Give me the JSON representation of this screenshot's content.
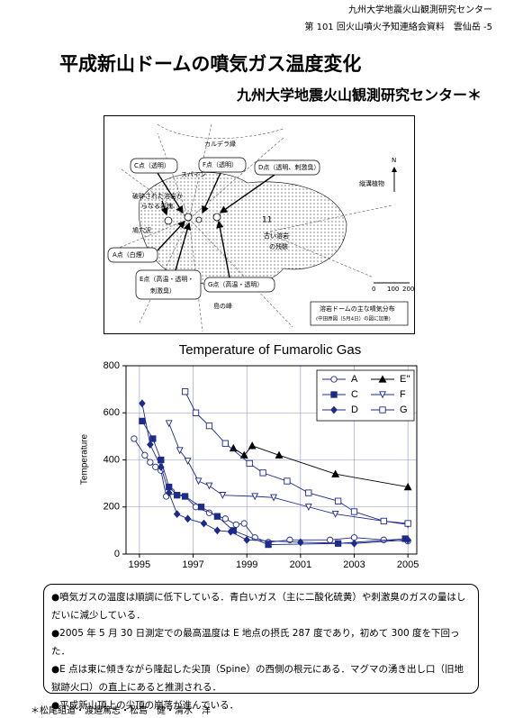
{
  "header": {
    "org": "九州大学地震火山観測研究センター",
    "meeting": "第 101 回火山噴火予知連絡会資料　雲仙岳 -5"
  },
  "title": "平成新山ドームの噴気ガス温度変化",
  "subtitle": "九州大学地震火山観測研究センター＊",
  "map": {
    "caldera": "カルデラ縁",
    "c": "C点（透明）",
    "f": "F点（透明）",
    "d": "D点（透明、刺激臭）",
    "spine": "スパイン",
    "rubble": [
      "破砕された溶岩か",
      "らなる岩塊"
    ],
    "valley": "鳩穴沢",
    "a": "A点（白煙）",
    "e": [
      "E点（高温・透明・",
      "刺激臭）"
    ],
    "g": "G点（高温・透明）",
    "old": [
      "古い溶岩",
      "の残骸"
    ],
    "lobe": "11",
    "peak": "島の峰",
    "north": "N",
    "veg": "縦溝植物",
    "scale": [
      "0",
      "100",
      "200m"
    ],
    "legend": [
      "溶岩ドームの主な噴気分布",
      "(中田原図（5月4日）の図に加筆)"
    ]
  },
  "chart_data": {
    "type": "line",
    "title": "Temperature of Fumarolic Gas",
    "y_label": "Temperature",
    "xlim": [
      1994.5,
      2005.33
    ],
    "xticks": [
      1995,
      1997,
      1999,
      2001,
      2003,
      2005
    ],
    "ylim": [
      0,
      800
    ],
    "yticks": [
      0,
      200,
      400,
      600,
      800
    ],
    "grid": true,
    "series": [
      {
        "name": "A",
        "color": "#1c2a8c",
        "marker": "circle-open",
        "x": [
          1994.8,
          1995.2,
          1995.4,
          1995.6,
          1995.8,
          1996.0,
          1996.2,
          1996.7,
          1997.1,
          1997.6,
          1998.2,
          1998.6,
          1998.9,
          1999.3,
          1999.8,
          2000.6,
          2002.1,
          2003.0,
          2004.1,
          2005.0
        ],
        "values": [
          490,
          420,
          390,
          370,
          355,
          245,
          265,
          245,
          200,
          175,
          150,
          125,
          130,
          70,
          50,
          60,
          60,
          70,
          60,
          55
        ]
      },
      {
        "name": "C",
        "color": "#1c2a8c",
        "marker": "square",
        "x": [
          1995.1,
          1995.5,
          1995.8,
          1996.1,
          1996.4,
          1996.7,
          1997.3,
          1997.9,
          1998.5,
          1999.8,
          2002.4,
          2004.9
        ],
        "values": [
          565,
          490,
          400,
          285,
          250,
          245,
          200,
          160,
          100,
          40,
          45,
          65
        ]
      },
      {
        "name": "D",
        "color": "#1c2a8c",
        "marker": "diamond",
        "x": [
          1995.1,
          1995.4,
          1995.8,
          1996.1,
          1996.4,
          1996.8,
          1997.4,
          1997.9,
          1998.4,
          1999.0,
          2001.0,
          2003.0,
          2005.0
        ],
        "values": [
          640,
          465,
          370,
          260,
          170,
          150,
          130,
          100,
          95,
          60,
          50,
          45,
          60
        ]
      },
      {
        "name": "E''",
        "color": "#000000",
        "marker": "triangle",
        "x": [
          1998.5,
          1998.9,
          1999.2,
          2000.2,
          2002.3,
          2005.0
        ],
        "values": [
          450,
          420,
          460,
          420,
          340,
          285
        ]
      },
      {
        "name": "F",
        "color": "#1c2a8c",
        "marker": "triangle-down-open",
        "x": [
          1996.1,
          1996.5,
          1996.8,
          1997.2,
          1997.6,
          1998.1,
          1999.3,
          2000.0,
          2001.3,
          2002.3,
          2005.0
        ],
        "values": [
          555,
          440,
          395,
          310,
          290,
          250,
          245,
          240,
          200,
          170,
          125
        ]
      },
      {
        "name": "G",
        "color": "#1c2a8c",
        "marker": "square-open",
        "x": [
          1996.7,
          1997.1,
          1997.6,
          1998.2,
          1999.1,
          1999.6,
          2000.5,
          2001.3,
          2002.4,
          2003.0,
          2004.1,
          2005.0
        ],
        "values": [
          690,
          600,
          545,
          470,
          385,
          345,
          310,
          260,
          225,
          180,
          140,
          130
        ]
      }
    ]
  },
  "notes": [
    "●噴気ガスの温度は順調に低下している．青白いガス（主に二酸化硫黄）や刺激臭のガスの量はしだいに減少している．",
    "●2005 年 5 月 30 日測定での最高温度は E 地点の摂氏 287 度であり，初めて 300 度を下回った．",
    "●E 点は東に傾きながら隆起した尖頂（Spine）の西側の根元にある．マグマの湧き出し口（旧地獄跡火口）の直上にあると推測される．",
    "●平成新山頂上の尖頂の崩落が進んでいる．"
  ],
  "footer": "＊松尾組道・渡邉篤志・松島　健・清水　洋"
}
